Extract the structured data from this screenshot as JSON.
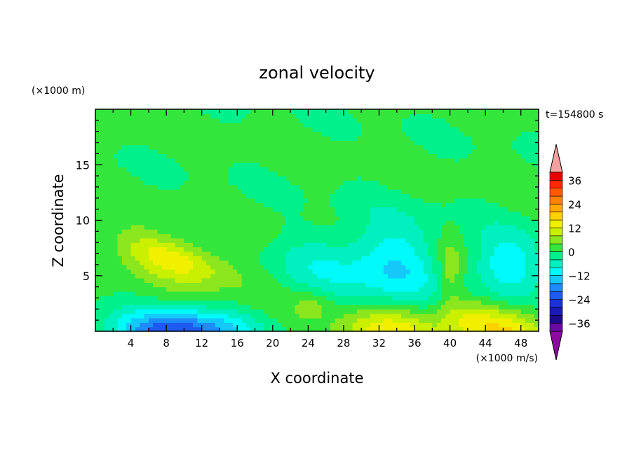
{
  "chart_data": {
    "type": "heatmap",
    "title": "zonal velocity",
    "xlabel": "X coordinate",
    "ylabel": "Z coordinate",
    "x_unit": "(×1000 m/s)",
    "y_unit": "(×1000 m)",
    "time_label": "t=154800 s",
    "xlim": [
      0,
      50
    ],
    "ylim": [
      0,
      20
    ],
    "x_ticks": [
      4,
      8,
      12,
      16,
      20,
      24,
      28,
      32,
      36,
      40,
      44,
      48
    ],
    "y_ticks": [
      5,
      10,
      15
    ],
    "colorbar": {
      "levels": [
        -40,
        -36,
        -32,
        -28,
        -24,
        -20,
        -16,
        -12,
        -8,
        -4,
        0,
        4,
        8,
        12,
        16,
        20,
        24,
        28,
        32,
        36,
        40
      ],
      "colors": [
        "#6a0aa0",
        "#1e0a8c",
        "#1a1ab4",
        "#1c32d8",
        "#1e5af0",
        "#1e8cf8",
        "#14c8f8",
        "#00fafa",
        "#00f0c0",
        "#00f08c",
        "#34e63c",
        "#8ce61e",
        "#c8f000",
        "#f0f000",
        "#ffd200",
        "#ffaa00",
        "#ff8200",
        "#ff5a00",
        "#ff2800",
        "#e60000"
      ],
      "under_color": "#8c0aa0",
      "over_color": "#f5a0a0",
      "tick_labels": [
        "36",
        "24",
        "12",
        "0",
        "−12",
        "−24",
        "−36"
      ],
      "tick_values": [
        36,
        24,
        12,
        0,
        -12,
        -24,
        -36
      ]
    },
    "features": [
      {
        "kind": "jet",
        "x": 9,
        "z": 6.5,
        "peak": 14,
        "sx": 4.5,
        "sz": 1.3,
        "tilt": -0.2
      },
      {
        "kind": "surface",
        "x": 9.5,
        "z": 0,
        "peak": -24,
        "sx": 5,
        "sz": 1.4
      },
      {
        "kind": "surface",
        "x": 33,
        "z": 0,
        "peak": 14,
        "sx": 4,
        "sz": 1.6
      },
      {
        "kind": "surface",
        "x": 46,
        "z": 0,
        "peak": 14,
        "sx": 3.5,
        "sz": 1.6
      },
      {
        "kind": "blob",
        "x": 34,
        "z": 6,
        "peak": -12,
        "sx": 3.5,
        "sz": 3
      },
      {
        "kind": "blob",
        "x": 46.5,
        "z": 6,
        "peak": -12,
        "sx": 3,
        "sz": 2.2
      },
      {
        "kind": "blob",
        "x": 26,
        "z": 6,
        "peak": -7,
        "sx": 4,
        "sz": 2.5
      },
      {
        "kind": "blob",
        "x": 40,
        "z": 5,
        "peak": 7,
        "sx": 1,
        "sz": 2.5
      },
      {
        "kind": "blob",
        "x": 24.5,
        "z": 2.5,
        "peak": 5,
        "sx": 1.5,
        "sz": 1
      },
      {
        "kind": "blob",
        "x": 42,
        "z": 1.5,
        "peak": 6,
        "sx": 2,
        "sz": 1
      }
    ]
  }
}
